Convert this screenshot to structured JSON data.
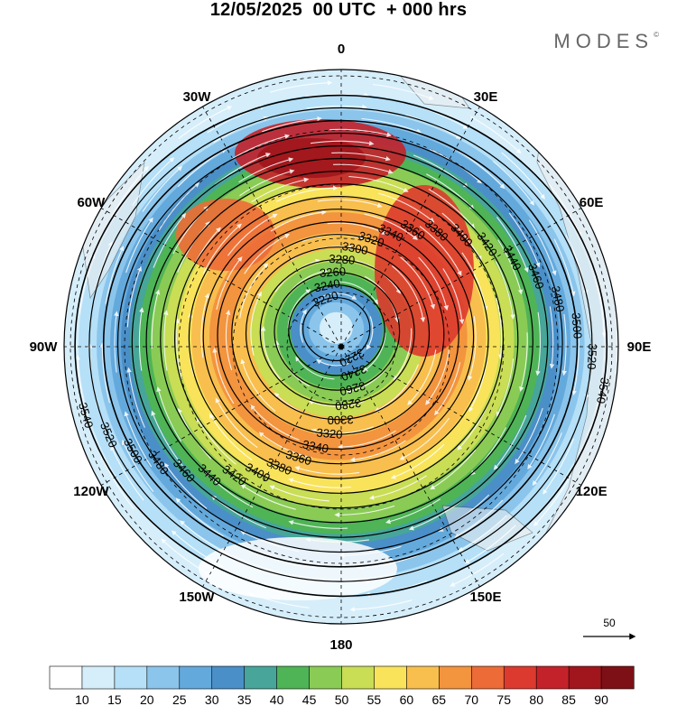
{
  "header": {
    "title": "12/05/2025  00 UTC  + 000 hrs",
    "brand": "MODES",
    "brand_mark": "©"
  },
  "map": {
    "projection": "north polar stereographic",
    "longitude_labels": [
      {
        "text": "0",
        "lon": 0
      },
      {
        "text": "30E",
        "lon": 30
      },
      {
        "text": "60E",
        "lon": 60
      },
      {
        "text": "90E",
        "lon": 90
      },
      {
        "text": "120E",
        "lon": 120
      },
      {
        "text": "150E",
        "lon": 150
      },
      {
        "text": "180",
        "lon": 180
      },
      {
        "text": "150W",
        "lon": -150
      },
      {
        "text": "120W",
        "lon": -120
      },
      {
        "text": "90W",
        "lon": -90
      },
      {
        "text": "60W",
        "lon": -60
      },
      {
        "text": "30W",
        "lon": -30
      }
    ],
    "height_contours": {
      "interval": 20,
      "visible_labels": [
        "3220",
        "3240",
        "3260",
        "3280",
        "3300",
        "3320",
        "3340",
        "3360",
        "3380",
        "3400",
        "3420",
        "3440",
        "3460",
        "3480",
        "3500",
        "3520",
        "3540"
      ]
    },
    "wind_reference": {
      "value": "50",
      "icon": "arrow-right-icon"
    }
  },
  "colorbar": {
    "ticks": [
      "10",
      "15",
      "20",
      "25",
      "30",
      "35",
      "40",
      "45",
      "50",
      "55",
      "60",
      "65",
      "70",
      "75",
      "80",
      "85",
      "90"
    ],
    "colors": [
      "#ffffff",
      "#d6eefa",
      "#b5e0f7",
      "#8bc5ec",
      "#64a9dc",
      "#4a8fc8",
      "#47a59a",
      "#4fb456",
      "#8acb55",
      "#c9dd55",
      "#f8e35b",
      "#f8bf4e",
      "#f3943e",
      "#ec6b37",
      "#dc3a2e",
      "#c4222a",
      "#a0161c",
      "#7d1016"
    ]
  }
}
